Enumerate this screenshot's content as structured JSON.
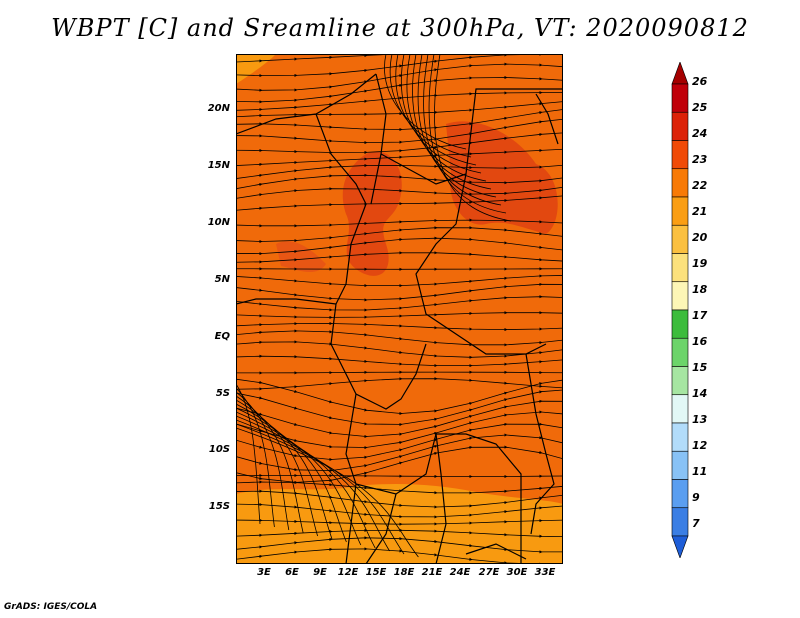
{
  "title": "WBPT [C] and Sreamline at 300hPa, VT: 2020090812",
  "credit": "GrADS: IGES/COLA",
  "lat_labels": [
    "20N",
    "15N",
    "10N",
    "5N",
    "EQ",
    "5S",
    "10S",
    "15S"
  ],
  "lon_labels": [
    "3E",
    "6E",
    "9E",
    "12E",
    "15E",
    "18E",
    "21E",
    "24E",
    "27E",
    "30E",
    "33E"
  ],
  "colorbar": {
    "labels": [
      "26",
      "25",
      "24",
      "23",
      "22",
      "21",
      "20",
      "19",
      "18",
      "17",
      "16",
      "15",
      "14",
      "13",
      "12",
      "11",
      "9",
      "7"
    ],
    "colors": [
      "#a50000",
      "#c0000a",
      "#dc2208",
      "#f04a06",
      "#f87a06",
      "#fa9e14",
      "#fbc040",
      "#fce17c",
      "#fdf6b6",
      "#3cbc3c",
      "#6cd46a",
      "#a6e6a2",
      "#e2f8f6",
      "#b2dcfa",
      "#88c2f6",
      "#5a9ef0",
      "#3a7ee4",
      "#1e5ed8"
    ]
  },
  "map_fill_colors": {
    "dominant": "#f06a0a",
    "warm_patch": "#e24810",
    "cool_south": "#f89a10"
  }
}
